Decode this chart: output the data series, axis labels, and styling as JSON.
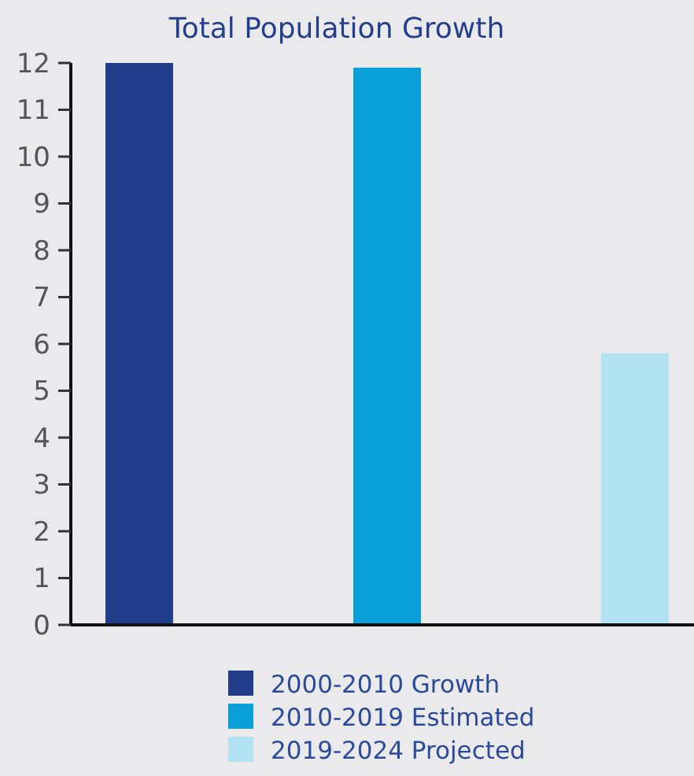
{
  "chart_data": {
    "type": "bar",
    "title": "Total Population Growth",
    "categories": [
      null,
      null,
      null
    ],
    "series": [
      {
        "name": "2000-2010 Growth",
        "color": "#233e8b",
        "values": [
          12,
          null,
          null
        ]
      },
      {
        "name": "2010-2019 Estimated",
        "color": "#0b9fd9",
        "values": [
          null,
          11.9,
          null
        ]
      },
      {
        "name": "2019-2024 Projected",
        "color": "#b3e2f3",
        "values": [
          null,
          null,
          5.8
        ]
      }
    ],
    "ylim": [
      0,
      12
    ],
    "yticks": [
      0,
      1,
      2,
      3,
      4,
      5,
      6,
      7,
      8,
      9,
      10,
      11,
      12
    ],
    "legend": "bottom"
  }
}
